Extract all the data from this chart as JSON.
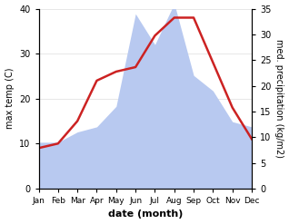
{
  "months": [
    "Jan",
    "Feb",
    "Mar",
    "Apr",
    "May",
    "Jun",
    "Jul",
    "Aug",
    "Sep",
    "Oct",
    "Nov",
    "Dec"
  ],
  "temp": [
    9,
    10,
    15,
    24,
    26,
    27,
    34,
    38,
    38,
    28,
    18,
    11
  ],
  "precip": [
    9,
    9,
    11,
    12,
    16,
    34,
    28,
    36,
    22,
    19,
    13,
    12
  ],
  "temp_color": "#cc2222",
  "precip_color": "#b8c9f0",
  "temp_ylim": [
    0,
    40
  ],
  "precip_ylim": [
    0,
    35
  ],
  "temp_yticks": [
    0,
    10,
    20,
    30,
    40
  ],
  "precip_yticks": [
    0,
    5,
    10,
    15,
    20,
    25,
    30,
    35
  ],
  "xlabel": "date (month)",
  "ylabel_left": "max temp (C)",
  "ylabel_right": "med. precipitation (kg/m2)",
  "background_color": "#ffffff"
}
